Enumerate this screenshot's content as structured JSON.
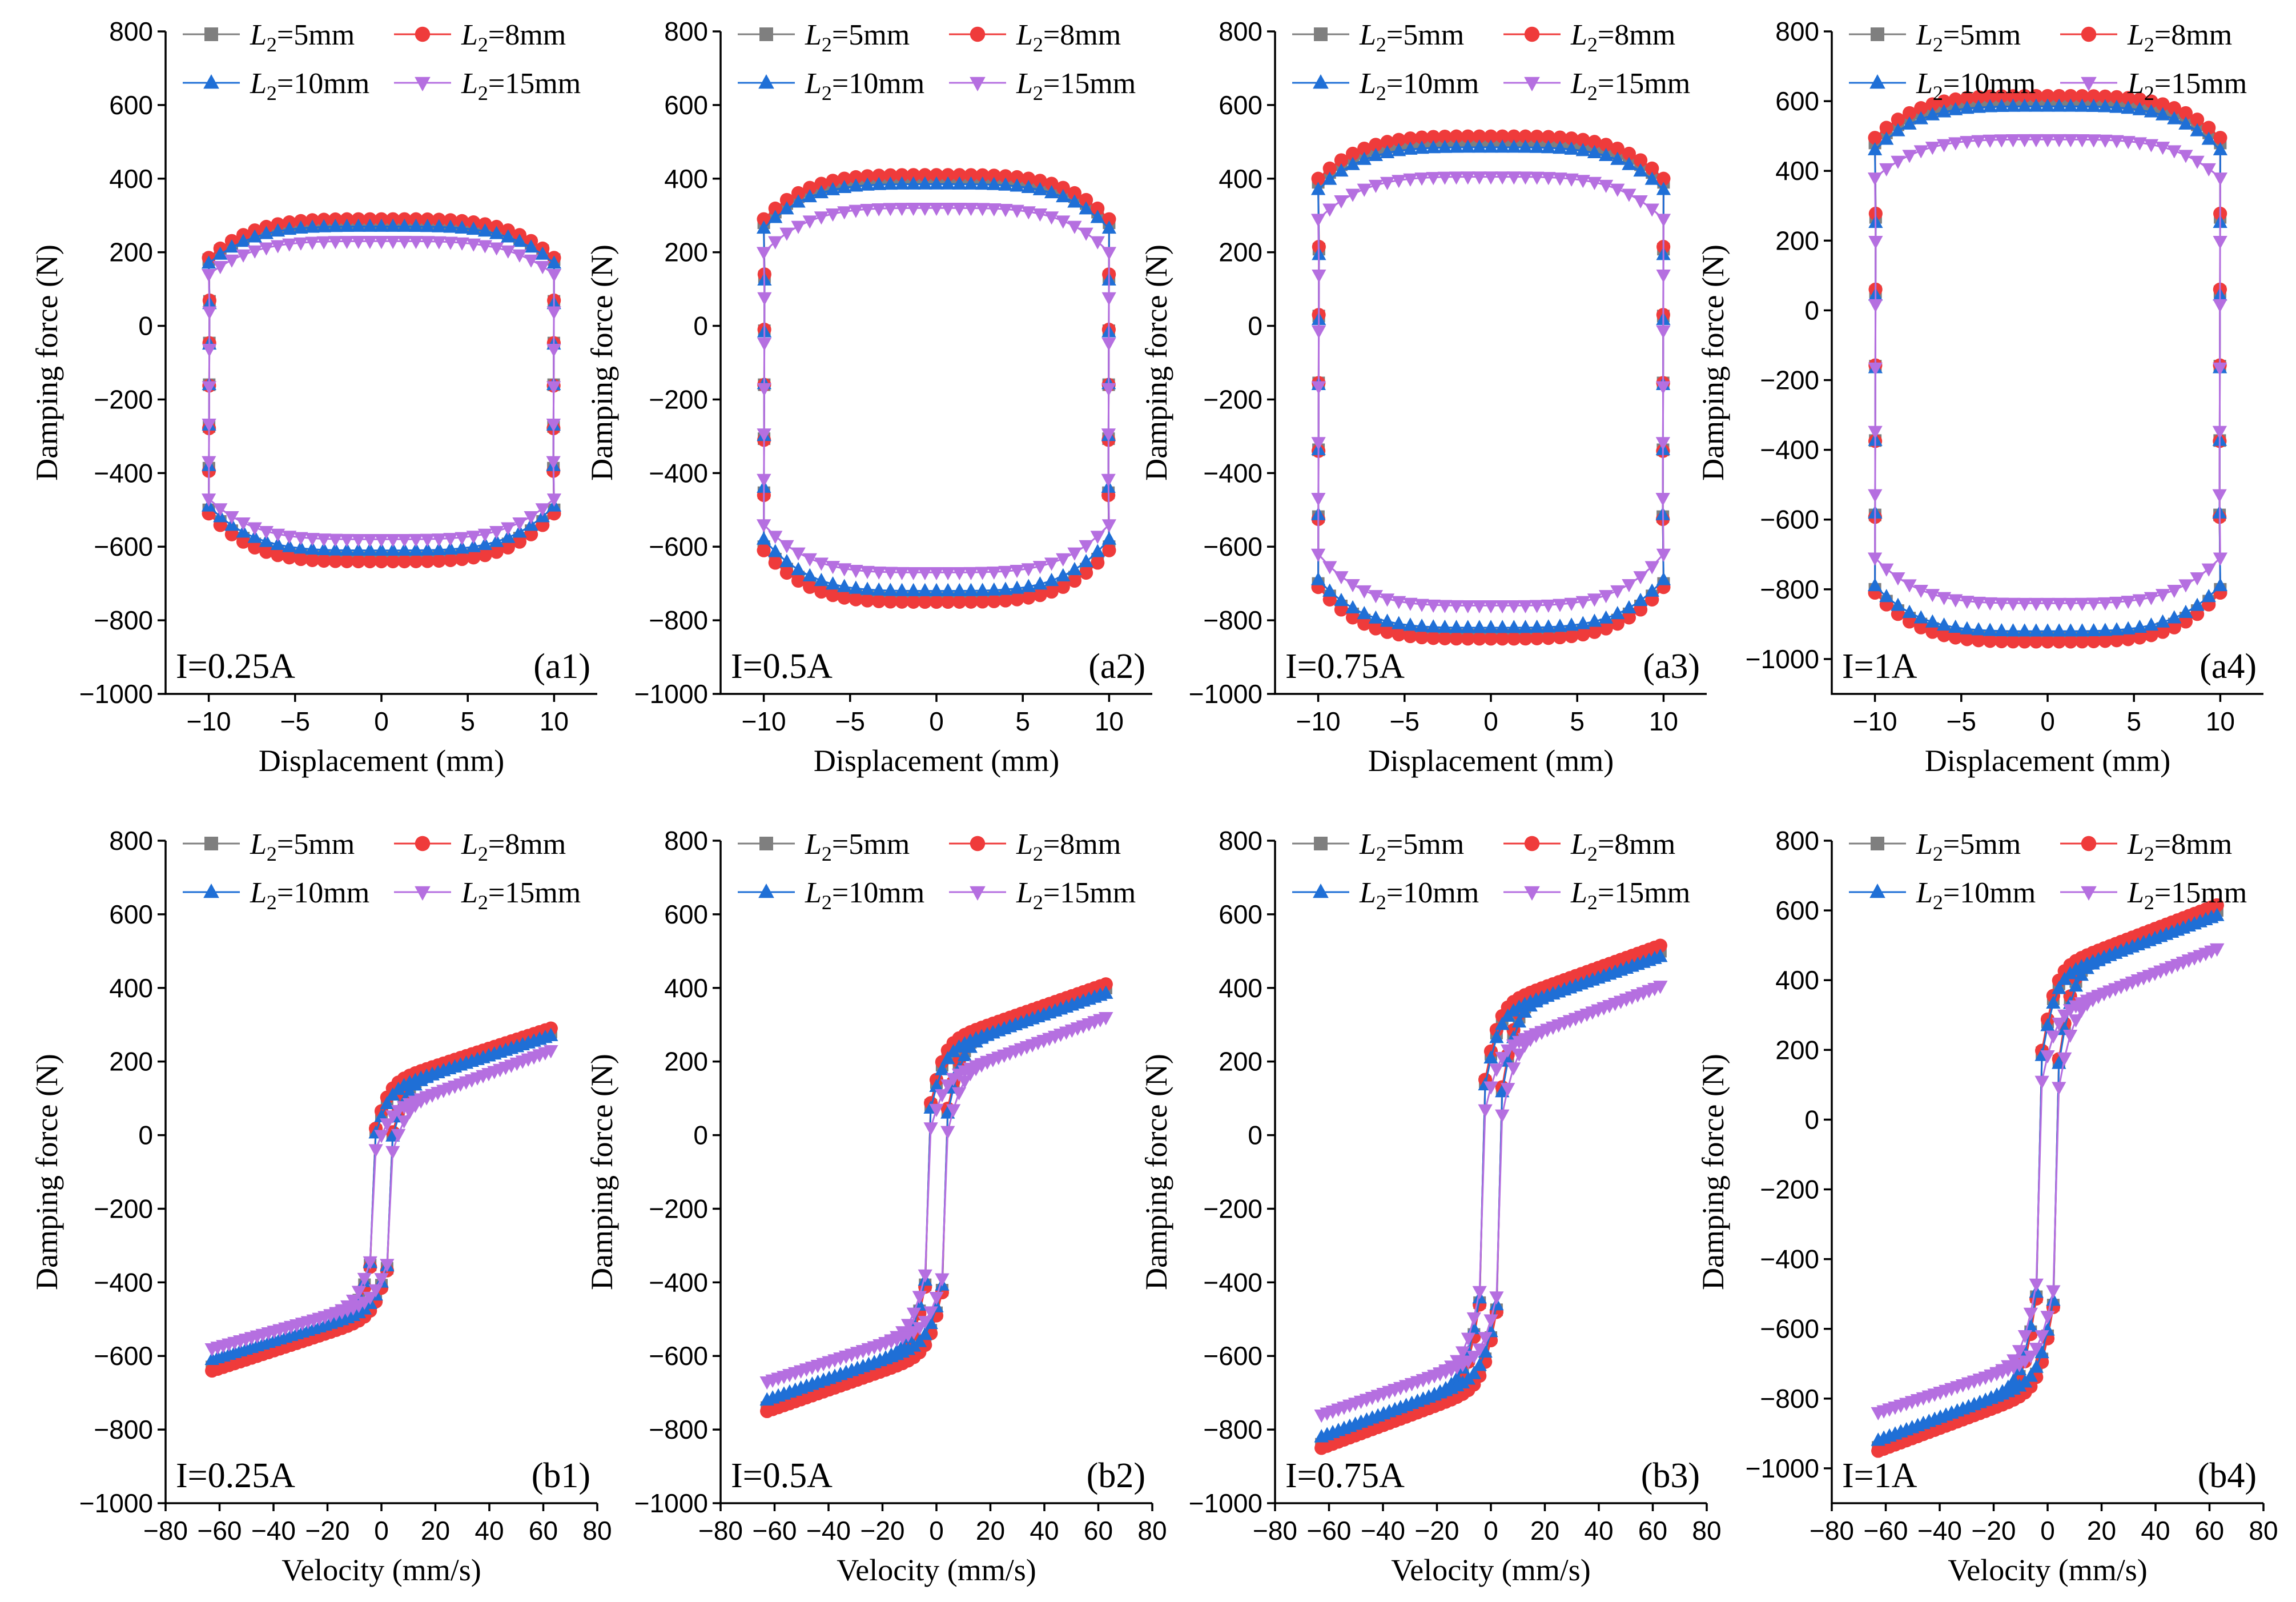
{
  "figure": {
    "series": [
      {
        "name": "L2=5mm",
        "label_var": "L",
        "label_sub": "2",
        "label_rest": "=5mm",
        "color": "#7f7f7f",
        "marker": "square"
      },
      {
        "name": "L2=8mm",
        "label_var": "L",
        "label_sub": "2",
        "label_rest": "=8mm",
        "color": "#ef3b3b",
        "marker": "circle"
      },
      {
        "name": "L2=10mm",
        "label_var": "L",
        "label_sub": "2",
        "label_rest": "=10mm",
        "color": "#1f6fd6",
        "marker": "triangle-up"
      },
      {
        "name": "L2=15mm",
        "label_var": "L",
        "label_sub": "2",
        "label_rest": "=15mm",
        "color": "#b56fe0",
        "marker": "triangle-down"
      }
    ]
  },
  "chart_data": [
    {
      "id": "a1",
      "type": "line",
      "panel_label": "(a1)",
      "current_label": "I=0.25A",
      "title": "",
      "xlabel": "Displacement (mm)",
      "ylabel": "Damping force (N)",
      "xlim": [
        -12.5,
        12.5
      ],
      "ylim": [
        -1000,
        800
      ],
      "xticks": [
        -10,
        -5,
        0,
        5,
        10
      ],
      "yticks": [
        -1000,
        -800,
        -600,
        -400,
        -200,
        0,
        200,
        400,
        600,
        800
      ],
      "loop_model": "displacement",
      "series_params": [
        {
          "name": "L2=5mm",
          "top_peak": 280,
          "top_edge": 180,
          "bottom_peak": -630,
          "bottom_edge": -500
        },
        {
          "name": "L2=8mm",
          "top_peak": 290,
          "top_edge": 185,
          "bottom_peak": -640,
          "bottom_edge": -510
        },
        {
          "name": "L2=10mm",
          "top_peak": 270,
          "top_edge": 170,
          "bottom_peak": -610,
          "bottom_edge": -490
        },
        {
          "name": "L2=15mm",
          "top_peak": 230,
          "top_edge": 140,
          "bottom_peak": -580,
          "bottom_edge": -470
        }
      ]
    },
    {
      "id": "a2",
      "type": "line",
      "panel_label": "(a2)",
      "current_label": "I=0.5A",
      "title": "",
      "xlabel": "Displacement (mm)",
      "ylabel": "Damping force (N)",
      "xlim": [
        -12.5,
        12.5
      ],
      "ylim": [
        -1000,
        800
      ],
      "xticks": [
        -10,
        -5,
        0,
        5,
        10
      ],
      "yticks": [
        -1000,
        -800,
        -600,
        -400,
        -200,
        0,
        200,
        400,
        600,
        800
      ],
      "loop_model": "displacement",
      "series_params": [
        {
          "name": "L2=5mm",
          "top_peak": 400,
          "top_edge": 280,
          "bottom_peak": -740,
          "bottom_edge": -600
        },
        {
          "name": "L2=8mm",
          "top_peak": 410,
          "top_edge": 290,
          "bottom_peak": -750,
          "bottom_edge": -610
        },
        {
          "name": "L2=10mm",
          "top_peak": 385,
          "top_edge": 265,
          "bottom_peak": -720,
          "bottom_edge": -580
        },
        {
          "name": "L2=15mm",
          "top_peak": 320,
          "top_edge": 200,
          "bottom_peak": -670,
          "bottom_edge": -540
        }
      ]
    },
    {
      "id": "a3",
      "type": "line",
      "panel_label": "(a3)",
      "current_label": "I=0.75A",
      "title": "",
      "xlabel": "Displacement (mm)",
      "ylabel": "Damping force (N)",
      "xlim": [
        -12.5,
        12.5
      ],
      "ylim": [
        -1000,
        800
      ],
      "xticks": [
        -10,
        -5,
        0,
        5,
        10
      ],
      "yticks": [
        -1000,
        -800,
        -600,
        -400,
        -200,
        0,
        200,
        400,
        600,
        800
      ],
      "loop_model": "displacement",
      "series_params": [
        {
          "name": "L2=5mm",
          "top_peak": 500,
          "top_edge": 390,
          "bottom_peak": -840,
          "bottom_edge": -700
        },
        {
          "name": "L2=8mm",
          "top_peak": 515,
          "top_edge": 400,
          "bottom_peak": -850,
          "bottom_edge": -710
        },
        {
          "name": "L2=10mm",
          "top_peak": 485,
          "top_edge": 370,
          "bottom_peak": -820,
          "bottom_edge": -690
        },
        {
          "name": "L2=15mm",
          "top_peak": 405,
          "top_edge": 290,
          "bottom_peak": -760,
          "bottom_edge": -620
        }
      ]
    },
    {
      "id": "a4",
      "type": "line",
      "panel_label": "(a4)",
      "current_label": "I=1A",
      "title": "",
      "xlabel": "Displacement (mm)",
      "ylabel": "Damping force (N)",
      "xlim": [
        -12.5,
        12.5
      ],
      "ylim": [
        -1100,
        800
      ],
      "xticks": [
        -10,
        -5,
        0,
        5,
        10
      ],
      "yticks": [
        -1000,
        -800,
        -600,
        -400,
        -200,
        0,
        200,
        400,
        600,
        800
      ],
      "loop_model": "displacement",
      "series_params": [
        {
          "name": "L2=5mm",
          "top_peak": 600,
          "top_edge": 480,
          "bottom_peak": -940,
          "bottom_edge": -800
        },
        {
          "name": "L2=8mm",
          "top_peak": 615,
          "top_edge": 495,
          "bottom_peak": -950,
          "bottom_edge": -810
        },
        {
          "name": "L2=10mm",
          "top_peak": 585,
          "top_edge": 460,
          "bottom_peak": -920,
          "bottom_edge": -790
        },
        {
          "name": "L2=15mm",
          "top_peak": 490,
          "top_edge": 380,
          "bottom_peak": -840,
          "bottom_edge": -710
        }
      ]
    },
    {
      "id": "b1",
      "type": "line",
      "panel_label": "(b1)",
      "current_label": "I=0.25A",
      "title": "",
      "xlabel": "Velocity (mm/s)",
      "ylabel": "Damping force (N)",
      "xlim": [
        -80,
        80
      ],
      "ylim": [
        -1000,
        800
      ],
      "xticks": [
        -80,
        -60,
        -40,
        -20,
        0,
        20,
        40,
        60,
        80
      ],
      "yticks": [
        -1000,
        -800,
        -600,
        -400,
        -200,
        0,
        200,
        400,
        600,
        800
      ],
      "loop_model": "velocity",
      "series_params": [
        {
          "name": "L2=5mm",
          "top_peak": 280,
          "top_edge": 130,
          "bottom_peak": -630,
          "bottom_edge": -480
        },
        {
          "name": "L2=8mm",
          "top_peak": 290,
          "top_edge": 140,
          "bottom_peak": -640,
          "bottom_edge": -490
        },
        {
          "name": "L2=10mm",
          "top_peak": 270,
          "top_edge": 120,
          "bottom_peak": -610,
          "bottom_edge": -470
        },
        {
          "name": "L2=15mm",
          "top_peak": 230,
          "top_edge": 60,
          "bottom_peak": -580,
          "bottom_edge": -450
        }
      ]
    },
    {
      "id": "b2",
      "type": "line",
      "panel_label": "(b2)",
      "current_label": "I=0.5A",
      "title": "",
      "xlabel": "Velocity (mm/s)",
      "ylabel": "Damping force (N)",
      "xlim": [
        -80,
        80
      ],
      "ylim": [
        -1000,
        800
      ],
      "xticks": [
        -80,
        -60,
        -40,
        -20,
        0,
        20,
        40,
        60,
        80
      ],
      "yticks": [
        -1000,
        -800,
        -600,
        -400,
        -200,
        0,
        200,
        400,
        600,
        800
      ],
      "loop_model": "velocity",
      "series_params": [
        {
          "name": "L2=5mm",
          "top_peak": 400,
          "top_edge": 240,
          "bottom_peak": -740,
          "bottom_edge": -580
        },
        {
          "name": "L2=8mm",
          "top_peak": 410,
          "top_edge": 250,
          "bottom_peak": -750,
          "bottom_edge": -590
        },
        {
          "name": "L2=10mm",
          "top_peak": 385,
          "top_edge": 225,
          "bottom_peak": -720,
          "bottom_edge": -560
        },
        {
          "name": "L2=15mm",
          "top_peak": 320,
          "top_edge": 150,
          "bottom_peak": -670,
          "bottom_edge": -520
        }
      ]
    },
    {
      "id": "b3",
      "type": "line",
      "panel_label": "(b3)",
      "current_label": "I=0.75A",
      "title": "",
      "xlabel": "Velocity (mm/s)",
      "ylabel": "Damping force (N)",
      "xlim": [
        -80,
        80
      ],
      "ylim": [
        -1000,
        800
      ],
      "xticks": [
        -80,
        -60,
        -40,
        -20,
        0,
        20,
        40,
        60,
        80
      ],
      "yticks": [
        -1000,
        -800,
        -600,
        -400,
        -200,
        0,
        200,
        400,
        600,
        800
      ],
      "loop_model": "velocity",
      "series_params": [
        {
          "name": "L2=5mm",
          "top_peak": 500,
          "top_edge": 340,
          "bottom_peak": -840,
          "bottom_edge": -670
        },
        {
          "name": "L2=8mm",
          "top_peak": 515,
          "top_edge": 350,
          "bottom_peak": -850,
          "bottom_edge": -680
        },
        {
          "name": "L2=10mm",
          "top_peak": 485,
          "top_edge": 325,
          "bottom_peak": -820,
          "bottom_edge": -650
        },
        {
          "name": "L2=15mm",
          "top_peak": 405,
          "top_edge": 230,
          "bottom_peak": -760,
          "bottom_edge": -600
        }
      ]
    },
    {
      "id": "b4",
      "type": "line",
      "panel_label": "(b4)",
      "current_label": "I=1A",
      "title": "",
      "xlabel": "Velocity (mm/s)",
      "ylabel": "Damping force (N)",
      "xlim": [
        -80,
        80
      ],
      "ylim": [
        -1100,
        800
      ],
      "xticks": [
        -80,
        -60,
        -40,
        -20,
        0,
        20,
        40,
        60,
        80
      ],
      "yticks": [
        -1000,
        -800,
        -600,
        -400,
        -200,
        0,
        200,
        400,
        600,
        800
      ],
      "loop_model": "velocity",
      "series_params": [
        {
          "name": "L2=5mm",
          "top_peak": 600,
          "top_edge": 420,
          "bottom_peak": -940,
          "bottom_edge": -760
        },
        {
          "name": "L2=8mm",
          "top_peak": 615,
          "top_edge": 430,
          "bottom_peak": -950,
          "bottom_edge": -770
        },
        {
          "name": "L2=10mm",
          "top_peak": 585,
          "top_edge": 405,
          "bottom_peak": -920,
          "bottom_edge": -740
        },
        {
          "name": "L2=15mm",
          "top_peak": 490,
          "top_edge": 300,
          "bottom_peak": -840,
          "bottom_edge": -680
        }
      ]
    }
  ]
}
